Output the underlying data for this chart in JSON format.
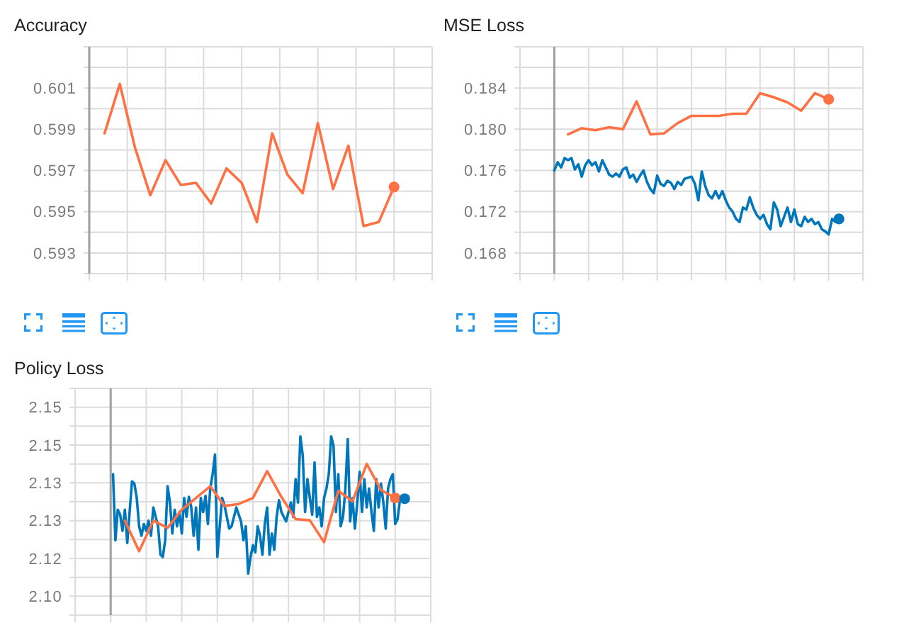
{
  "chart_data": [
    {
      "type": "line",
      "title": "Accuracy",
      "categories": [
        null,
        null,
        null,
        null,
        null,
        null,
        null,
        null,
        null,
        null,
        null,
        null,
        null,
        null,
        null,
        null,
        null,
        null,
        null,
        null
      ],
      "ylim": [
        0.592,
        0.603
      ],
      "yticks": [
        {
          "value": 0.592,
          "label": null
        },
        0.593,
        {
          "value": 0.594,
          "label": null
        },
        0.595,
        {
          "value": 0.596,
          "label": null
        },
        0.597,
        {
          "value": 0.598,
          "label": null
        },
        0.599,
        {
          "value": 0.6,
          "label": null
        },
        0.601,
        {
          "value": 0.602,
          "label": null
        },
        {
          "value": 0.603,
          "label": null
        }
      ],
      "grid": true,
      "tick_labels": "y",
      "series": [
        {
          "color": "#ff7043",
          "values": [
            0.5988,
            0.6012,
            0.5981,
            0.5958,
            0.5975,
            0.5963,
            0.5964,
            0.5954,
            0.5971,
            0.5964,
            0.5945,
            0.5988,
            0.5968,
            0.5959,
            0.5993,
            0.5961,
            0.5982,
            0.5943,
            0.5945,
            0.5962
          ]
        },
        {
          "type": "scatter",
          "color": "#ff7043",
          "values": [
            null,
            null,
            null,
            null,
            null,
            null,
            null,
            null,
            null,
            null,
            null,
            null,
            null,
            null,
            null,
            null,
            null,
            null,
            null,
            0.5962
          ]
        }
      ]
    },
    {
      "type": "line",
      "title": "MSE Loss",
      "categories": [
        null,
        null,
        null,
        null,
        null,
        null,
        null,
        null,
        null,
        null,
        null,
        null,
        null,
        null,
        null,
        null,
        null,
        null,
        null,
        null,
        null,
        null,
        null,
        null,
        null,
        null,
        null,
        null,
        null,
        null,
        null,
        null,
        null,
        null,
        null,
        null,
        null,
        null,
        null,
        null,
        null,
        null,
        null,
        null,
        null,
        null,
        null,
        null,
        null,
        null,
        null,
        null,
        null,
        null,
        null,
        null,
        null,
        null,
        null,
        null,
        null,
        null,
        null,
        null,
        null,
        null,
        null,
        null,
        null,
        null,
        null,
        null,
        null,
        null,
        null,
        null,
        null,
        null,
        null,
        null,
        null,
        null,
        null,
        null
      ],
      "ylim": [
        0.166,
        0.188
      ],
      "yticks": [
        {
          "value": 0.166,
          "label": null
        },
        0.168,
        {
          "value": 0.17,
          "label": null
        },
        0.172,
        {
          "value": 0.174,
          "label": null
        },
        0.176,
        {
          "value": 0.178,
          "label": null
        },
        {
          "value": 0.18,
          "label": "0.180"
        },
        {
          "value": 0.182,
          "label": null
        },
        0.184,
        {
          "value": 0.186,
          "label": null
        },
        {
          "value": 0.188,
          "label": null
        }
      ],
      "grid": true,
      "tick_labels": "y",
      "series": [
        {
          "color": "#ff7043",
          "values": [
            null,
            null,
            null,
            null,
            0.1795,
            null,
            null,
            null,
            0.1801,
            null,
            null,
            null,
            0.1799,
            null,
            null,
            null,
            0.1802,
            null,
            null,
            null,
            0.18,
            null,
            null,
            null,
            0.1827,
            null,
            null,
            null,
            0.1795,
            null,
            null,
            null,
            0.1796,
            null,
            null,
            null,
            0.1806,
            null,
            null,
            null,
            0.1813,
            null,
            null,
            null,
            0.1813,
            null,
            null,
            null,
            0.1813,
            null,
            null,
            null,
            0.1815,
            null,
            null,
            null,
            0.1815,
            null,
            null,
            null,
            0.1835,
            null,
            null,
            null,
            0.1831,
            null,
            null,
            null,
            0.1826,
            null,
            null,
            null,
            0.1818,
            null,
            null,
            null,
            0.1835,
            null,
            null,
            null,
            0.1829,
            null,
            null,
            null
          ]
        },
        {
          "color": "#0077bb",
          "values": [
            0.176,
            0.1768,
            0.1763,
            0.1772,
            0.177,
            0.1772,
            0.1761,
            0.1766,
            0.1754,
            0.1765,
            0.177,
            0.1765,
            0.1768,
            0.1759,
            0.177,
            0.1763,
            0.1756,
            0.1754,
            0.1757,
            0.1754,
            0.1761,
            0.1763,
            0.1753,
            0.1756,
            0.1749,
            0.1755,
            0.176,
            0.1749,
            0.1742,
            0.1738,
            0.1755,
            0.1747,
            0.1745,
            0.175,
            0.1748,
            0.1742,
            0.1749,
            0.1746,
            0.1752,
            0.1753,
            0.1754,
            0.1747,
            0.1731,
            0.1759,
            0.1745,
            0.1736,
            0.1733,
            0.174,
            0.1733,
            0.174,
            0.1731,
            0.1724,
            0.172,
            0.1713,
            0.171,
            0.1724,
            0.1722,
            0.1734,
            0.1724,
            0.1717,
            0.1713,
            0.1717,
            0.1708,
            0.1703,
            0.1729,
            0.1722,
            0.1706,
            0.1715,
            0.1724,
            0.171,
            0.1722,
            0.1708,
            0.1706,
            0.1715,
            0.171,
            0.1713,
            0.1708,
            0.171,
            0.1703,
            0.1701,
            0.1698,
            0.1713,
            0.171,
            0.1713
          ]
        },
        {
          "type": "scatter",
          "color": "#ff7043",
          "values": [
            null,
            null,
            null,
            null,
            null,
            null,
            null,
            null,
            null,
            null,
            null,
            null,
            null,
            null,
            null,
            null,
            null,
            null,
            null,
            null,
            null,
            null,
            null,
            null,
            null,
            null,
            null,
            null,
            null,
            null,
            null,
            null,
            null,
            null,
            null,
            null,
            null,
            null,
            null,
            null,
            null,
            null,
            null,
            null,
            null,
            null,
            null,
            null,
            null,
            null,
            null,
            null,
            null,
            null,
            null,
            null,
            null,
            null,
            null,
            null,
            null,
            null,
            null,
            null,
            null,
            null,
            null,
            null,
            null,
            null,
            null,
            null,
            null,
            null,
            null,
            null,
            null,
            null,
            null,
            null,
            0.1829,
            null,
            null,
            null
          ]
        },
        {
          "type": "scatter",
          "color": "#0077bb",
          "values": [
            null,
            null,
            null,
            null,
            null,
            null,
            null,
            null,
            null,
            null,
            null,
            null,
            null,
            null,
            null,
            null,
            null,
            null,
            null,
            null,
            null,
            null,
            null,
            null,
            null,
            null,
            null,
            null,
            null,
            null,
            null,
            null,
            null,
            null,
            null,
            null,
            null,
            null,
            null,
            null,
            null,
            null,
            null,
            null,
            null,
            null,
            null,
            null,
            null,
            null,
            null,
            null,
            null,
            null,
            null,
            null,
            null,
            null,
            null,
            null,
            null,
            null,
            null,
            null,
            null,
            null,
            null,
            null,
            null,
            null,
            null,
            null,
            null,
            null,
            null,
            null,
            null,
            null,
            null,
            null,
            null,
            null,
            null,
            0.1713
          ]
        }
      ]
    },
    {
      "type": "line",
      "title": "Policy Loss",
      "categories": [
        null,
        null,
        null,
        null,
        null,
        null,
        null,
        null,
        null,
        null,
        null,
        null,
        null,
        null,
        null,
        null,
        null,
        null,
        null,
        null,
        null,
        null,
        null,
        null,
        null,
        null,
        null,
        null,
        null,
        null,
        null,
        null,
        null,
        null,
        null,
        null,
        null,
        null,
        null,
        null,
        null,
        null,
        null,
        null,
        null,
        null,
        null,
        null,
        null,
        null,
        null,
        null,
        null,
        null,
        null,
        null,
        null,
        null,
        null,
        null,
        null,
        null,
        null,
        null,
        null,
        null,
        null,
        null,
        null,
        null,
        null,
        null,
        null,
        null,
        null,
        null,
        null,
        null,
        null,
        null,
        null,
        null,
        null,
        null,
        null,
        null,
        null,
        null,
        null,
        null,
        null,
        null,
        null,
        null,
        null,
        null,
        null,
        null,
        null,
        null,
        null,
        null,
        null,
        null,
        null,
        null,
        null,
        null,
        null,
        null,
        null,
        null,
        null,
        null,
        null,
        null,
        null,
        null,
        null,
        null,
        null,
        null,
        null,
        null,
        null
      ],
      "ylim": [
        2.1,
        2.16
      ],
      "yticks": [
        {
          "value": 2.1,
          "label": null
        },
        {
          "value": 2.105,
          "label": "2.10"
        },
        {
          "value": 2.11,
          "label": null
        },
        {
          "value": 2.115,
          "label": "2.12"
        },
        {
          "value": 2.12,
          "label": null
        },
        {
          "value": 2.125,
          "label": "2.13"
        },
        {
          "value": 2.13,
          "label": null
        },
        {
          "value": 2.135,
          "label": "2.13"
        },
        {
          "value": 2.14,
          "label": null
        },
        {
          "value": 2.145,
          "label": "2.15"
        },
        {
          "value": 2.15,
          "label": null
        },
        {
          "value": 2.155,
          "label": "2.15"
        },
        {
          "value": 2.16,
          "label": null
        }
      ],
      "grid": true,
      "tick_labels": "y",
      "series": [
        {
          "color": "#0077bb",
          "values": [
            null,
            2.1373,
            2.1198,
            2.1279,
            2.1266,
            2.1223,
            2.1279,
            2.1191,
            2.1273,
            2.1354,
            2.1348,
            2.131,
            2.1235,
            2.121,
            2.1241,
            2.1223,
            2.125,
            2.121,
            2.1285,
            2.126,
            2.1235,
            2.116,
            2.1154,
            2.1198,
            2.1341,
            2.1298,
            2.1216,
            2.1279,
            2.1235,
            2.1273,
            2.1216,
            2.131,
            2.126,
            2.1313,
            2.1285,
            2.121,
            2.1285,
            2.1173,
            2.131,
            2.1273,
            2.1316,
            2.1241,
            2.1335,
            2.1373,
            2.1425,
            2.1154,
            2.1235,
            2.131,
            2.1291,
            2.126,
            2.1229,
            2.1235,
            2.126,
            2.1285,
            2.1266,
            2.1248,
            2.1198,
            2.1235,
            2.111,
            2.1154,
            2.1185,
            2.1166,
            2.1235,
            2.121,
            2.116,
            2.1241,
            2.1285,
            2.116,
            2.1216,
            2.1173,
            2.126,
            2.1304,
            2.1273,
            2.126,
            2.1248,
            2.1273,
            2.1298,
            2.126,
            2.136,
            2.1298,
            2.1473,
            2.1423,
            2.1273,
            2.136,
            2.131,
            2.1266,
            2.1404,
            2.126,
            2.1285,
            2.1235,
            2.131,
            2.1335,
            2.1373,
            2.1473,
            2.1448,
            2.1273,
            2.1373,
            2.1235,
            2.126,
            2.1335,
            2.1466,
            2.1248,
            2.131,
            2.1229,
            2.1298,
            2.1379,
            2.1273,
            2.136,
            2.1285,
            2.1335,
            2.1273,
            2.1223,
            2.136,
            2.1285,
            2.1348,
            2.1298,
            2.1229,
            2.1335,
            2.136,
            2.1373,
            2.1241,
            2.1254,
            2.1304,
            2.1308,
            2.1308
          ]
        },
        {
          "color": "#ff7043",
          "values": [
            null,
            null,
            null,
            null,
            null,
            null,
            2.125,
            null,
            null,
            null,
            null,
            null,
            2.1169,
            null,
            null,
            null,
            null,
            null,
            2.125,
            null,
            null,
            null,
            null,
            null,
            2.1231,
            null,
            null,
            null,
            null,
            null,
            2.1279,
            null,
            null,
            null,
            null,
            null,
            2.131,
            null,
            null,
            null,
            null,
            null,
            2.1341,
            null,
            null,
            null,
            null,
            null,
            2.1289,
            null,
            null,
            null,
            null,
            null,
            2.1294,
            null,
            null,
            null,
            null,
            null,
            2.131,
            null,
            null,
            null,
            null,
            null,
            2.1381,
            null,
            null,
            null,
            null,
            null,
            2.1313,
            null,
            null,
            null,
            null,
            null,
            2.1254,
            null,
            null,
            null,
            null,
            null,
            2.1251,
            null,
            null,
            null,
            null,
            null,
            2.1193,
            null,
            null,
            null,
            null,
            null,
            2.1329,
            null,
            null,
            null,
            null,
            null,
            2.1301,
            null,
            null,
            null,
            null,
            null,
            2.14,
            null,
            null,
            null,
            null,
            null,
            2.1331,
            null,
            null,
            null,
            null,
            null,
            2.131,
            null,
            null,
            null,
            null
          ]
        },
        {
          "type": "scatter",
          "color": "#ff7043",
          "values": [
            null,
            null,
            null,
            null,
            null,
            null,
            null,
            null,
            null,
            null,
            null,
            null,
            null,
            null,
            null,
            null,
            null,
            null,
            null,
            null,
            null,
            null,
            null,
            null,
            null,
            null,
            null,
            null,
            null,
            null,
            null,
            null,
            null,
            null,
            null,
            null,
            null,
            null,
            null,
            null,
            null,
            null,
            null,
            null,
            null,
            null,
            null,
            null,
            null,
            null,
            null,
            null,
            null,
            null,
            null,
            null,
            null,
            null,
            null,
            null,
            null,
            null,
            null,
            null,
            null,
            null,
            null,
            null,
            null,
            null,
            null,
            null,
            null,
            null,
            null,
            null,
            null,
            null,
            null,
            null,
            null,
            null,
            null,
            null,
            null,
            null,
            null,
            null,
            null,
            null,
            null,
            null,
            null,
            null,
            null,
            null,
            null,
            null,
            null,
            null,
            null,
            null,
            null,
            null,
            null,
            null,
            null,
            null,
            null,
            null,
            null,
            null,
            null,
            null,
            null,
            null,
            null,
            null,
            null,
            null,
            2.131,
            null,
            null,
            null,
            null
          ]
        },
        {
          "type": "scatter",
          "color": "#0077bb",
          "values": [
            null,
            null,
            null,
            null,
            null,
            null,
            null,
            null,
            null,
            null,
            null,
            null,
            null,
            null,
            null,
            null,
            null,
            null,
            null,
            null,
            null,
            null,
            null,
            null,
            null,
            null,
            null,
            null,
            null,
            null,
            null,
            null,
            null,
            null,
            null,
            null,
            null,
            null,
            null,
            null,
            null,
            null,
            null,
            null,
            null,
            null,
            null,
            null,
            null,
            null,
            null,
            null,
            null,
            null,
            null,
            null,
            null,
            null,
            null,
            null,
            null,
            null,
            null,
            null,
            null,
            null,
            null,
            null,
            null,
            null,
            null,
            null,
            null,
            null,
            null,
            null,
            null,
            null,
            null,
            null,
            null,
            null,
            null,
            null,
            null,
            null,
            null,
            null,
            null,
            null,
            null,
            null,
            null,
            null,
            null,
            null,
            null,
            null,
            null,
            null,
            null,
            null,
            null,
            null,
            null,
            null,
            null,
            null,
            null,
            null,
            null,
            null,
            null,
            null,
            null,
            null,
            null,
            null,
            null,
            null,
            null,
            null,
            null,
            null,
            2.1308
          ]
        }
      ]
    }
  ]
}
